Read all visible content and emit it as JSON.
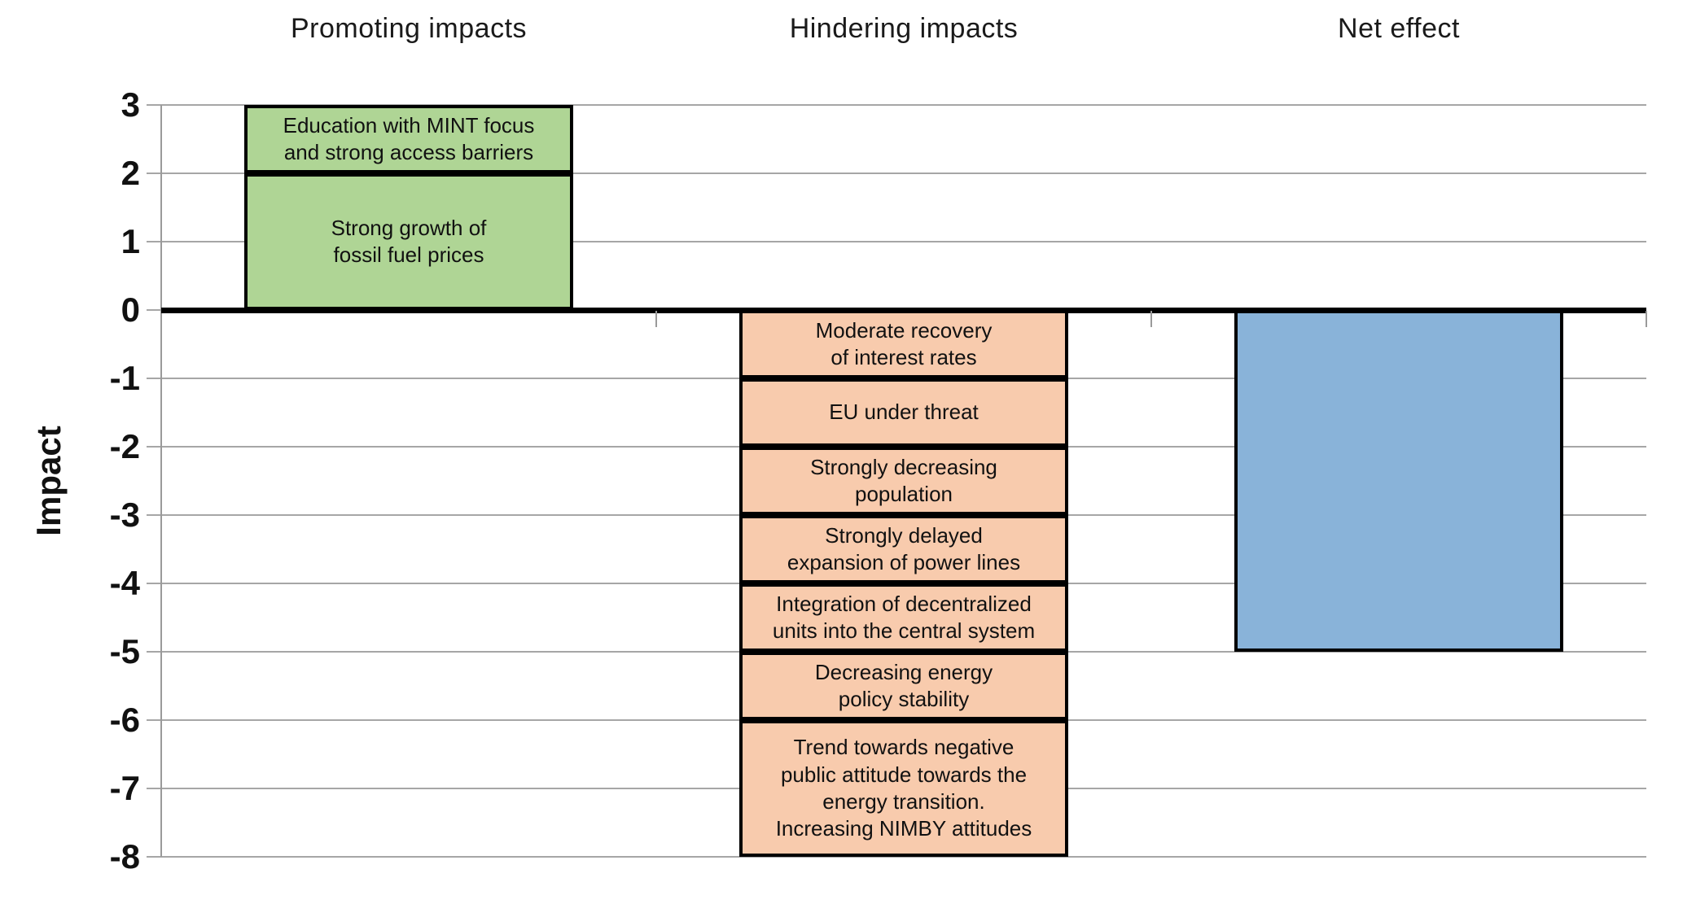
{
  "chart_data": {
    "type": "bar",
    "subtype": "stacked-column",
    "title": "",
    "ylabel": "Impact",
    "xlabel": "",
    "ylim": [
      -8,
      3
    ],
    "ytick_step": 1,
    "yticks": [
      "3",
      "2",
      "1",
      "0",
      "-1",
      "-2",
      "-3",
      "-4",
      "-5",
      "-6",
      "-7",
      "-8"
    ],
    "grid": true,
    "legend": false,
    "categories": [
      "Promoting impacts",
      "Hindering impacts",
      "Net effect"
    ],
    "stacks": [
      {
        "category": "Promoting impacts",
        "fill": "#afd595",
        "segments": [
          {
            "label": "Education with MINT focus\nand strong access barriers",
            "from": 2,
            "to": 3,
            "value": 1
          },
          {
            "label": "Strong growth of\nfossil fuel prices",
            "from": 0,
            "to": 2,
            "value": 2
          }
        ]
      },
      {
        "category": "Hindering impacts",
        "fill": "#f8cbad",
        "segments": [
          {
            "label": "Moderate recovery\nof interest rates",
            "from": -1,
            "to": 0,
            "value": -1
          },
          {
            "label": "EU under threat",
            "from": -2,
            "to": -1,
            "value": -1
          },
          {
            "label": "Strongly decreasing\npopulation",
            "from": -3,
            "to": -2,
            "value": -1
          },
          {
            "label": "Strongly delayed\nexpansion of power lines",
            "from": -4,
            "to": -3,
            "value": -1
          },
          {
            "label": "Integration of decentralized\nunits into the central system",
            "from": -5,
            "to": -4,
            "value": -1
          },
          {
            "label": "Decreasing energy\npolicy stability",
            "from": -6,
            "to": -5,
            "value": -1
          },
          {
            "label": "Trend towards negative\npublic attitude towards the\nenergy transition.\nIncreasing NIMBY attitudes",
            "from": -8,
            "to": -6,
            "value": -2
          }
        ]
      },
      {
        "category": "Net effect",
        "fill": "#89b3d9",
        "segments": [
          {
            "label": "",
            "from": -5,
            "to": 0,
            "value": -5
          }
        ]
      }
    ],
    "colors": {
      "promoting_fill": "#afd595",
      "hindering_fill": "#f8cbad",
      "net_fill": "#89b3d9",
      "bar_border": "#000000",
      "gridline": "#a6a6a6",
      "axis_line": "#9a9a9a",
      "zero_line": "#000000",
      "text": "#111111"
    }
  }
}
